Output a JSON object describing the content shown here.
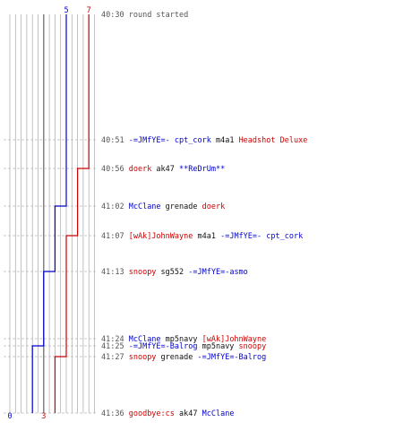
{
  "chart_data": {
    "type": "line",
    "title": "",
    "xlabel": "",
    "ylabel": "",
    "colors": {
      "blue": "#0000cc",
      "red": "#cc0000",
      "time": "#555555",
      "text": "#111111",
      "grid": "#a8a8a8",
      "dash": "#b8b8b8",
      "center": "#777777"
    },
    "x_axis": {
      "min": 0,
      "max": 7,
      "grid": true
    },
    "series": [
      {
        "name": "",
        "color": "#0000cc",
        "start_label": "5",
        "end_label": "0",
        "steps": [
          5,
          5,
          5,
          4,
          4,
          3,
          3,
          2,
          2,
          2,
          1,
          0
        ]
      },
      {
        "name": "",
        "color": "#cc0000",
        "start_label": "7",
        "end_label": "3",
        "steps": [
          7,
          7,
          6,
          6,
          5,
          5,
          5,
          5,
          4,
          4,
          3,
          3
        ]
      }
    ],
    "events": [
      {
        "time": "40:30",
        "segments": [
          {
            "text": "round started",
            "c": "time"
          }
        ]
      },
      {
        "time": "40:51",
        "segments": [
          {
            "text": "-=JMfYE=- cpt_cork",
            "c": "blue"
          },
          {
            "text": " m4a1 ",
            "c": "text"
          },
          {
            "text": "Headshot Deluxe",
            "c": "red"
          }
        ]
      },
      {
        "time": "40:56",
        "segments": [
          {
            "text": "doerk",
            "c": "red"
          },
          {
            "text": " ak47 ",
            "c": "text"
          },
          {
            "text": "**ReDrUm**",
            "c": "blue"
          }
        ]
      },
      {
        "time": "41:02",
        "segments": [
          {
            "text": "McClane",
            "c": "blue"
          },
          {
            "text": " grenade ",
            "c": "text"
          },
          {
            "text": "doerk",
            "c": "red"
          }
        ]
      },
      {
        "time": "41:07",
        "segments": [
          {
            "text": "[wAk]JohnWayne",
            "c": "red"
          },
          {
            "text": " m4a1 ",
            "c": "text"
          },
          {
            "text": "-=JMfYE=- cpt_cork",
            "c": "blue"
          }
        ]
      },
      {
        "time": "41:13",
        "segments": [
          {
            "text": "snoopy",
            "c": "red"
          },
          {
            "text": " sg552 ",
            "c": "text"
          },
          {
            "text": "-=JMfYE=-asmo",
            "c": "blue"
          }
        ]
      },
      {
        "time": "41:24",
        "segments": [
          {
            "text": "McClane",
            "c": "blue"
          },
          {
            "text": " mp5navy ",
            "c": "text"
          },
          {
            "text": "[wAk]JohnWayne",
            "c": "red"
          }
        ]
      },
      {
        "time": "41:25",
        "segments": [
          {
            "text": "-=JMfYE=-Balrog",
            "c": "blue"
          },
          {
            "text": " mp5navy ",
            "c": "text"
          },
          {
            "text": "snoopy",
            "c": "red"
          }
        ]
      },
      {
        "time": "41:27",
        "segments": [
          {
            "text": "snoopy",
            "c": "red"
          },
          {
            "text": " grenade ",
            "c": "text"
          },
          {
            "text": "-=JMfYE=-Balrog",
            "c": "blue"
          }
        ]
      },
      {
        "time": "41:36",
        "segments": [
          {
            "text": "goodbye:cs",
            "c": "red"
          },
          {
            "text": " ak47 ",
            "c": "text"
          },
          {
            "text": "McClane",
            "c": "blue"
          }
        ]
      }
    ]
  }
}
